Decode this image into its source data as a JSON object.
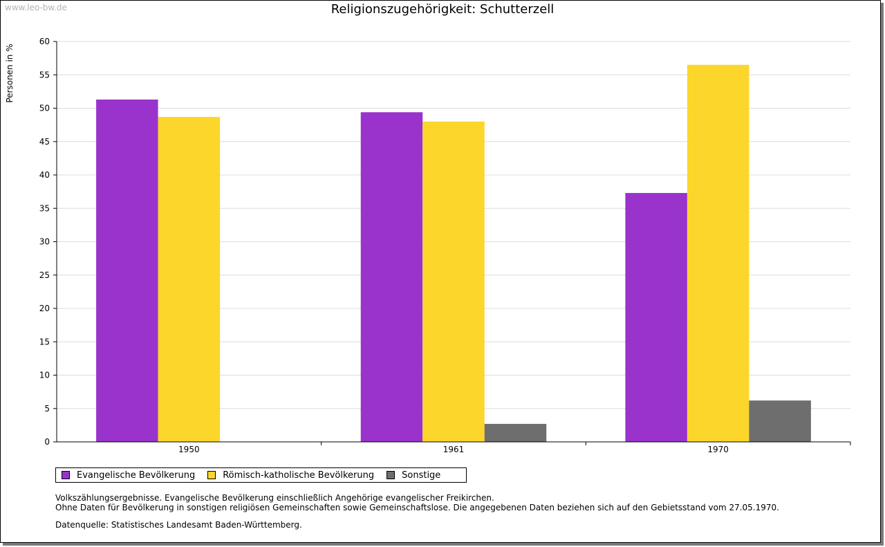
{
  "watermark": "www.leo-bw.de",
  "chart_data": {
    "type": "bar",
    "title": "Religionszugehörigkeit: Schutterzell",
    "xlabel": "",
    "ylabel": "Personen in %",
    "ylim": [
      0,
      60
    ],
    "yticks": [
      0,
      5,
      10,
      15,
      20,
      25,
      30,
      35,
      40,
      45,
      50,
      55,
      60
    ],
    "grid": true,
    "categories": [
      "1950",
      "1961",
      "1970"
    ],
    "series": [
      {
        "name": "Evangelische Bevölkerung",
        "color": "#9933cc",
        "values": [
          51.3,
          49.4,
          37.3
        ]
      },
      {
        "name": "Römisch-katholische Bevölkerung",
        "color": "#fcd62a",
        "values": [
          48.7,
          48.0,
          56.5
        ]
      },
      {
        "name": "Sonstige",
        "color": "#6e6e6e",
        "values": [
          null,
          2.7,
          6.2
        ]
      }
    ],
    "legend_position": "bottom"
  },
  "notes": {
    "line1": "Volkszählungsergebnisse. Evangelische Bevölkerung einschließlich Angehörige evangelischer Freikirchen.",
    "line2": "Ohne Daten für Bevölkerung in sonstigen religiösen Gemeinschaften sowie Gemeinschaftslose. Die angegebenen Daten beziehen sich auf den Gebietsstand vom 27.05.1970.",
    "source": "Datenquelle: Statistisches Landesamt Baden-Württemberg."
  }
}
